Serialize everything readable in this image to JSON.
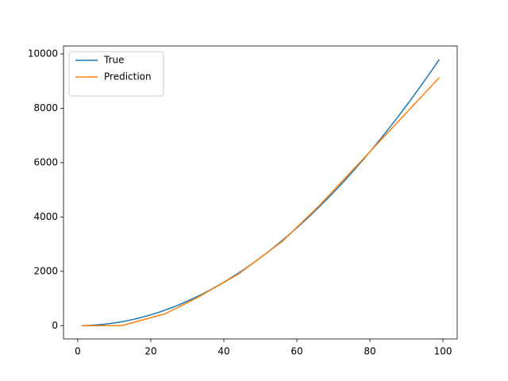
{
  "chart_data": {
    "type": "line",
    "x": [
      1,
      2,
      3,
      4,
      5,
      6,
      7,
      8,
      9,
      10,
      11,
      12,
      13,
      14,
      15,
      16,
      17,
      18,
      19,
      20,
      21,
      22,
      23,
      24,
      25,
      26,
      27,
      28,
      29,
      30,
      31,
      32,
      33,
      34,
      35,
      36,
      37,
      38,
      39,
      40,
      41,
      42,
      43,
      44,
      45,
      46,
      47,
      48,
      49,
      50,
      51,
      52,
      53,
      54,
      55,
      56,
      57,
      58,
      59,
      60,
      61,
      62,
      63,
      64,
      65,
      66,
      67,
      68,
      69,
      70,
      71,
      72,
      73,
      74,
      75,
      76,
      77,
      78,
      79,
      80,
      81,
      82,
      83,
      84,
      85,
      86,
      87,
      88,
      89,
      90,
      91,
      92,
      93,
      94,
      95,
      96,
      97,
      98,
      99
    ],
    "series": [
      {
        "name": "True",
        "color": "#1f77b4",
        "values": [
          1,
          4,
          9,
          16,
          25,
          36,
          49,
          64,
          81,
          100,
          121,
          144,
          169,
          196,
          225,
          256,
          289,
          324,
          361,
          400,
          441,
          484,
          529,
          576,
          625,
          676,
          729,
          784,
          841,
          900,
          961,
          1024,
          1089,
          1156,
          1225,
          1296,
          1369,
          1444,
          1521,
          1600,
          1681,
          1764,
          1849,
          1936,
          2025,
          2116,
          2209,
          2304,
          2401,
          2500,
          2601,
          2704,
          2809,
          2916,
          3025,
          3136,
          3249,
          3364,
          3481,
          3600,
          3721,
          3844,
          3969,
          4096,
          4225,
          4356,
          4489,
          4624,
          4761,
          4900,
          5041,
          5184,
          5329,
          5476,
          5625,
          5776,
          5929,
          6084,
          6241,
          6400,
          6561,
          6724,
          6889,
          7056,
          7225,
          7396,
          7569,
          7744,
          7921,
          8100,
          8281,
          8464,
          8649,
          8836,
          9025,
          9216,
          9409,
          9604,
          9801
        ]
      },
      {
        "name": "Prediction",
        "color": "#ff7f0e",
        "values": [
          0,
          0,
          0,
          0,
          0,
          0,
          0,
          0,
          0,
          0,
          0,
          0,
          37,
          73,
          110,
          147,
          183,
          220,
          257,
          293,
          330,
          367,
          403,
          440,
          508,
          576,
          643,
          711,
          779,
          847,
          914,
          982,
          1050,
          1127,
          1205,
          1282,
          1359,
          1436,
          1514,
          1591,
          1668,
          1745,
          1823,
          1900,
          2000,
          2100,
          2200,
          2300,
          2400,
          2500,
          2600,
          2700,
          2800,
          2900,
          3000,
          3100,
          3230,
          3360,
          3490,
          3620,
          3750,
          3880,
          4010,
          4140,
          4270,
          4400,
          4543,
          4686,
          4829,
          4971,
          5114,
          5257,
          5400,
          5543,
          5686,
          5829,
          5971,
          6114,
          6257,
          6400,
          6544,
          6687,
          6831,
          6975,
          7118,
          7262,
          7406,
          7549,
          7693,
          7837,
          7980,
          8124,
          8268,
          8411,
          8555,
          8699,
          8843,
          8986,
          9130
        ]
      }
    ],
    "xlim": [
      -3.9,
      103.9
    ],
    "ylim": [
      -489,
      10291
    ],
    "xticks": [
      0,
      20,
      40,
      60,
      80,
      100
    ],
    "yticks": [
      0,
      2000,
      4000,
      6000,
      8000,
      10000
    ],
    "grid": false,
    "legend": "upper-left"
  }
}
